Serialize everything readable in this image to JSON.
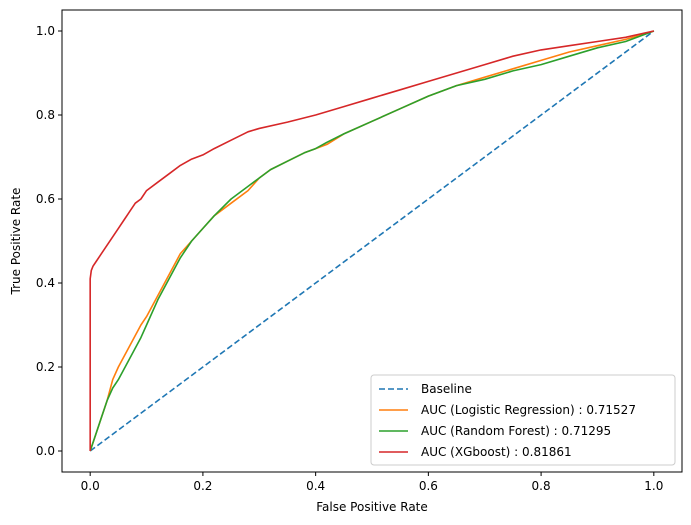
{
  "chart_data": {
    "type": "line",
    "title": "",
    "xlabel": "False Positive Rate",
    "ylabel": "True Positive Rate",
    "xlim": [
      -0.05,
      1.05
    ],
    "ylim": [
      -0.05,
      1.05
    ],
    "xticks": [
      "0.0",
      "0.2",
      "0.4",
      "0.6",
      "0.8",
      "1.0"
    ],
    "yticks": [
      "0.0",
      "0.2",
      "0.4",
      "0.6",
      "0.8",
      "1.0"
    ],
    "grid": false,
    "legend_position": "bottom-right",
    "series": [
      {
        "name": "Baseline",
        "color": "#1f77b4",
        "style": "dashed",
        "x": [
          0.0,
          1.0
        ],
        "y": [
          0.0,
          1.0
        ]
      },
      {
        "name": "AUC (Logistic Regression) : 0.71527",
        "color": "#ff7f0e",
        "style": "solid",
        "x": [
          0.0,
          0.01,
          0.02,
          0.03,
          0.04,
          0.05,
          0.07,
          0.09,
          0.1,
          0.12,
          0.14,
          0.16,
          0.18,
          0.2,
          0.22,
          0.25,
          0.28,
          0.3,
          0.32,
          0.35,
          0.38,
          0.4,
          0.42,
          0.45,
          0.5,
          0.55,
          0.6,
          0.65,
          0.7,
          0.75,
          0.8,
          0.85,
          0.9,
          0.95,
          1.0
        ],
        "y": [
          0.0,
          0.04,
          0.08,
          0.12,
          0.17,
          0.2,
          0.25,
          0.3,
          0.32,
          0.37,
          0.42,
          0.47,
          0.5,
          0.53,
          0.56,
          0.59,
          0.62,
          0.65,
          0.67,
          0.69,
          0.71,
          0.72,
          0.73,
          0.755,
          0.785,
          0.815,
          0.845,
          0.87,
          0.89,
          0.91,
          0.93,
          0.95,
          0.965,
          0.98,
          1.0
        ]
      },
      {
        "name": "AUC (Random Forest) : 0.71295",
        "color": "#2ca02c",
        "style": "solid",
        "x": [
          0.0,
          0.01,
          0.02,
          0.03,
          0.04,
          0.05,
          0.07,
          0.09,
          0.1,
          0.12,
          0.14,
          0.16,
          0.18,
          0.2,
          0.22,
          0.25,
          0.28,
          0.3,
          0.32,
          0.35,
          0.38,
          0.4,
          0.42,
          0.45,
          0.5,
          0.55,
          0.6,
          0.65,
          0.7,
          0.75,
          0.8,
          0.85,
          0.9,
          0.95,
          1.0
        ],
        "y": [
          0.0,
          0.04,
          0.08,
          0.12,
          0.15,
          0.17,
          0.22,
          0.27,
          0.3,
          0.36,
          0.41,
          0.46,
          0.5,
          0.53,
          0.56,
          0.6,
          0.63,
          0.65,
          0.67,
          0.69,
          0.71,
          0.72,
          0.735,
          0.755,
          0.785,
          0.815,
          0.845,
          0.87,
          0.885,
          0.905,
          0.92,
          0.94,
          0.96,
          0.975,
          1.0
        ]
      },
      {
        "name": "AUC (XGboost) : 0.81861",
        "color": "#d62728",
        "style": "solid",
        "x": [
          0.0,
          0.0,
          0.002,
          0.005,
          0.01,
          0.02,
          0.03,
          0.04,
          0.05,
          0.06,
          0.07,
          0.08,
          0.09,
          0.1,
          0.12,
          0.14,
          0.16,
          0.18,
          0.2,
          0.22,
          0.25,
          0.28,
          0.3,
          0.35,
          0.4,
          0.45,
          0.5,
          0.55,
          0.6,
          0.65,
          0.7,
          0.75,
          0.8,
          0.85,
          0.9,
          0.95,
          1.0
        ],
        "y": [
          0.0,
          0.41,
          0.43,
          0.44,
          0.45,
          0.47,
          0.49,
          0.51,
          0.53,
          0.55,
          0.57,
          0.59,
          0.6,
          0.62,
          0.64,
          0.66,
          0.68,
          0.695,
          0.705,
          0.72,
          0.74,
          0.76,
          0.768,
          0.783,
          0.8,
          0.82,
          0.84,
          0.86,
          0.88,
          0.9,
          0.92,
          0.94,
          0.955,
          0.965,
          0.975,
          0.985,
          1.0
        ]
      }
    ]
  }
}
